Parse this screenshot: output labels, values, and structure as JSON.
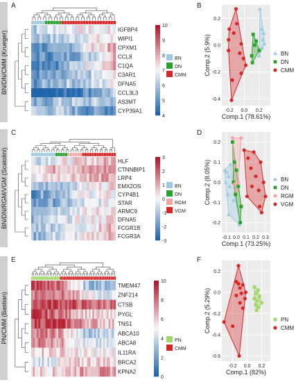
{
  "rows": [
    {
      "band_label": "BN/DN/CMM (Krueger)",
      "left_letter": "A",
      "right_letter": "B",
      "heatmap": {
        "genes": [
          "IGFBP4",
          "WIPI1",
          "CPXM1",
          "CCL8",
          "C1QA",
          "C3AR1",
          "DFNA5",
          "CCL3L3",
          "AS3MT",
          "CYP39A1"
        ],
        "colorbar_ticks": [
          "10",
          "9",
          "8",
          "7",
          "6",
          "5",
          "4"
        ],
        "legend": [
          {
            "label": "BN",
            "color": "#9ecae1"
          },
          {
            "label": "DN",
            "color": "#2ca02c"
          },
          {
            "label": "CMM",
            "color": "#d62728"
          }
        ]
      },
      "pca": {
        "xlabel": "Comp.1 (78.61%)",
        "ylabel": "Comp.2 (5.9%)",
        "xticks": [
          "-0.2",
          "0.0",
          "0.2"
        ],
        "yticks": [
          "0.2",
          "0.0",
          "-0.2",
          "-0.4"
        ],
        "legend": [
          {
            "label": "BN",
            "color": "#9ecae1",
            "shape": "triangle"
          },
          {
            "label": "DN",
            "color": "#2ca02c",
            "shape": "square"
          },
          {
            "label": "CMM",
            "color": "#d62728",
            "shape": "circle"
          }
        ]
      }
    },
    {
      "band_label": "BN/DN/RGM/VGM (Scatolini)",
      "left_letter": "C",
      "right_letter": "D",
      "heatmap": {
        "genes": [
          "HLF",
          "CTNNBIP1",
          "LRP4",
          "EMX2OS",
          "CYP4B1",
          "STAR",
          "ARMC9",
          "DFNA5",
          "FCGR1B",
          "FCGR3A"
        ],
        "colorbar_ticks": [
          "3",
          "2",
          "1",
          "0",
          "-1",
          "-2",
          "-3"
        ],
        "legend": [
          {
            "label": "BN",
            "color": "#9ecae1"
          },
          {
            "label": "DN",
            "color": "#2ca02c"
          },
          {
            "label": "RGM",
            "color": "#f4a6a6"
          },
          {
            "label": "VGM",
            "color": "#d62728"
          }
        ]
      },
      "pca": {
        "xlabel": "Comp.1 (73.25%)",
        "ylabel": "Comp.2 (8.05%)",
        "xticks": [
          "-0.1",
          "0.0",
          "0.1",
          "0.2",
          "0.3"
        ],
        "yticks": [
          "0.2",
          "0.1",
          "0.0",
          "-0.1",
          "-0.2"
        ],
        "legend": [
          {
            "label": "BN",
            "color": "#9ecae1",
            "shape": "triangle"
          },
          {
            "label": "DN",
            "color": "#2ca02c",
            "shape": "square"
          },
          {
            "label": "RGM",
            "color": "#f4a6a6",
            "shape": "diamond"
          },
          {
            "label": "VGM",
            "color": "#d62728",
            "shape": "circle"
          }
        ]
      }
    },
    {
      "band_label": "PN/CMM (Bastian)",
      "left_letter": "E",
      "right_letter": "F",
      "heatmap": {
        "genes": [
          "TMEM47",
          "ZNF214",
          "CTSB",
          "PYGL",
          "TNS1",
          "ABCA10",
          "ABCA8",
          "IL11RA",
          "BRCA2",
          "KPNA2"
        ],
        "colorbar_ticks": [
          "10",
          "8",
          "6",
          "4",
          "2",
          "0"
        ],
        "legend": [
          {
            "label": "PN",
            "color": "#a1d76a"
          },
          {
            "label": "CMM",
            "color": "#d62728"
          }
        ]
      },
      "pca": {
        "xlabel": "Comp.1 (82%)",
        "ylabel": "Comp.2 (5.29%)",
        "xticks": [
          "-0.2",
          "0.0",
          "0.2"
        ],
        "yticks": [
          "0.2",
          "0.0",
          "-0.2",
          "-0.4",
          "-0.6"
        ],
        "legend": [
          {
            "label": "PN",
            "color": "#a1d76a",
            "shape": "square"
          },
          {
            "label": "CMM",
            "color": "#d62728",
            "shape": "circle"
          }
        ]
      }
    }
  ],
  "chart_data": [
    {
      "type": "heatmap",
      "rows": [
        "IGFBP4",
        "WIPI1",
        "CPXM1",
        "CCL8",
        "C1QA",
        "C3AR1",
        "DFNA5",
        "CCL3L3",
        "AS3MT",
        "CYP39A1"
      ],
      "column_groups": [
        {
          "label": "BN",
          "count": 5
        },
        {
          "label": "DN",
          "count": 6
        },
        {
          "label": "CMM",
          "count": 20
        }
      ],
      "color_range": [
        4,
        10
      ],
      "profile": [
        [
          6,
          7,
          7,
          7
        ],
        [
          6,
          6,
          7,
          7
        ],
        [
          5,
          5,
          7,
          8
        ],
        [
          5,
          5,
          6,
          8
        ],
        [
          5,
          5,
          7,
          8
        ],
        [
          5,
          5,
          6,
          7
        ],
        [
          5,
          6,
          6,
          7
        ],
        [
          4,
          4,
          5,
          6
        ],
        [
          5,
          6,
          6,
          6
        ],
        [
          6,
          6,
          5,
          5
        ]
      ]
    },
    {
      "type": "scatter",
      "xlim": [
        -0.3,
        0.35
      ],
      "ylim": [
        -0.45,
        0.3
      ],
      "series": [
        {
          "name": "BN",
          "points": [
            [
              0.21,
              0.27
            ],
            [
              0.23,
              0.12
            ],
            [
              0.26,
              0.09
            ],
            [
              0.25,
              0.04
            ],
            [
              0.27,
              0.01
            ],
            [
              0.2,
              -0.08
            ],
            [
              0.24,
              -0.02
            ]
          ]
        },
        {
          "name": "DN",
          "points": [
            [
              0.12,
              0.08
            ],
            [
              0.16,
              0.03
            ],
            [
              0.14,
              0.0
            ],
            [
              0.2,
              -0.04
            ],
            [
              0.11,
              -0.13
            ],
            [
              0.1,
              -0.08
            ]
          ]
        },
        {
          "name": "CMM",
          "points": [
            [
              -0.11,
              0.27
            ],
            [
              -0.1,
              0.16
            ],
            [
              -0.2,
              0.12
            ],
            [
              -0.14,
              0.09
            ],
            [
              -0.21,
              0.04
            ],
            [
              -0.04,
              0.01
            ],
            [
              -0.06,
              -0.06
            ],
            [
              -0.01,
              -0.1
            ],
            [
              0.02,
              -0.15
            ],
            [
              -0.04,
              -0.21
            ],
            [
              -0.21,
              -0.04
            ],
            [
              -0.16,
              -0.26
            ],
            [
              -0.17,
              -0.41
            ]
          ]
        }
      ]
    },
    {
      "type": "heatmap",
      "rows": [
        "HLF",
        "CTNNBIP1",
        "LRP4",
        "EMX2OS",
        "CYP4B1",
        "STAR",
        "ARMC9",
        "DFNA5",
        "FCGR1B",
        "FCGR3A"
      ],
      "column_groups": [
        {
          "label": "BN",
          "count": 10
        },
        {
          "label": "DN",
          "count": 5
        },
        {
          "label": "RGM",
          "count": 6
        },
        {
          "label": "VGM",
          "count": 14
        }
      ],
      "color_range": [
        -3,
        3
      ],
      "profile": [
        [
          -0.5,
          0,
          0.5,
          1
        ],
        [
          0.5,
          1,
          1,
          1.5
        ],
        [
          0,
          0.5,
          1,
          1
        ],
        [
          -1.5,
          -1,
          0,
          0.5
        ],
        [
          -2,
          -1,
          0,
          0
        ],
        [
          -2,
          -1.5,
          -0.5,
          0
        ],
        [
          -1,
          -0.5,
          0,
          0.5
        ],
        [
          -1.5,
          -0.5,
          0,
          0.5
        ],
        [
          -1,
          -0.5,
          0,
          1
        ],
        [
          -1.5,
          -0.5,
          0,
          1
        ]
      ]
    },
    {
      "type": "scatter",
      "xlim": [
        -0.15,
        0.35
      ],
      "ylim": [
        -0.25,
        0.25
      ],
      "series": [
        {
          "name": "BN",
          "points": [
            [
              -0.12,
              0.06
            ],
            [
              -0.1,
              0.05
            ],
            [
              -0.08,
              0.03
            ],
            [
              -0.11,
              0.0
            ],
            [
              -0.07,
              -0.02
            ],
            [
              -0.09,
              -0.06
            ],
            [
              -0.03,
              -0.09
            ],
            [
              -0.06,
              0.09
            ],
            [
              -0.08,
              -0.16
            ],
            [
              0.03,
              -0.21
            ]
          ]
        },
        {
          "name": "DN",
          "points": [
            [
              -0.04,
              0.2
            ],
            [
              -0.02,
              0.1
            ],
            [
              0.0,
              0.06
            ],
            [
              -0.03,
              0.0
            ],
            [
              0.02,
              -0.02
            ],
            [
              -0.01,
              -0.06
            ],
            [
              0.05,
              -0.12
            ],
            [
              0.04,
              -0.2
            ]
          ]
        },
        {
          "name": "RGM",
          "points": [
            [
              -0.04,
              0.22
            ],
            [
              0.05,
              0.22
            ],
            [
              0.02,
              0.0
            ],
            [
              -0.02,
              -0.01
            ],
            [
              0.0,
              -0.04
            ]
          ]
        },
        {
          "name": "VGM",
          "points": [
            [
              0.08,
              0.16
            ],
            [
              0.18,
              0.15
            ],
            [
              0.12,
              0.12
            ],
            [
              0.25,
              0.1
            ],
            [
              0.15,
              0.07
            ],
            [
              0.2,
              0.03
            ],
            [
              0.28,
              0.0
            ],
            [
              0.16,
              -0.02
            ],
            [
              0.23,
              -0.04
            ],
            [
              0.11,
              -0.07
            ],
            [
              0.3,
              -0.07
            ],
            [
              0.24,
              -0.12
            ],
            [
              0.26,
              -0.15
            ]
          ]
        }
      ]
    },
    {
      "type": "heatmap",
      "rows": [
        "TMEM47",
        "ZNF214",
        "CTSB",
        "PYGL",
        "TNS1",
        "ABCA10",
        "ABCA8",
        "IL11RA",
        "BRCA2",
        "KPNA2"
      ],
      "column_groups": [
        {
          "label": "PN",
          "count": 16
        },
        {
          "label": "CMM",
          "count": 31
        }
      ],
      "color_range": [
        0,
        10
      ],
      "profile": [
        [
          9,
          8,
          3,
          3
        ],
        [
          8,
          8,
          5,
          4
        ],
        [
          9,
          9,
          8,
          8
        ],
        [
          9,
          8,
          6,
          5
        ],
        [
          9,
          9,
          7,
          6
        ],
        [
          8,
          7,
          3,
          4
        ],
        [
          8,
          7,
          4,
          4
        ],
        [
          6,
          6,
          5,
          5
        ],
        [
          4,
          5,
          6,
          6
        ],
        [
          6,
          6,
          7,
          7
        ]
      ]
    },
    {
      "type": "scatter",
      "xlim": [
        -0.35,
        0.32
      ],
      "ylim": [
        -0.65,
        0.3
      ],
      "series": [
        {
          "name": "PN",
          "points": [
            [
              0.1,
              0.05
            ],
            [
              0.15,
              0.02
            ],
            [
              0.12,
              -0.01
            ],
            [
              0.17,
              -0.04
            ],
            [
              0.1,
              -0.06
            ],
            [
              0.14,
              -0.08
            ],
            [
              0.2,
              -0.1
            ],
            [
              0.12,
              -0.12
            ],
            [
              0.16,
              -0.14
            ],
            [
              0.13,
              -0.17
            ]
          ]
        },
        {
          "name": "CMM",
          "points": [
            [
              -0.12,
              0.25
            ],
            [
              -0.15,
              0.1
            ],
            [
              -0.12,
              0.08
            ],
            [
              -0.06,
              0.07
            ],
            [
              -0.1,
              0.04
            ],
            [
              -0.02,
              0.0
            ],
            [
              -0.08,
              -0.01
            ],
            [
              -0.15,
              -0.03
            ],
            [
              -0.03,
              -0.06
            ],
            [
              -0.1,
              -0.1
            ],
            [
              -0.06,
              -0.15
            ],
            [
              -0.32,
              -0.28
            ],
            [
              -0.2,
              -0.32
            ],
            [
              -0.11,
              -0.6
            ]
          ]
        }
      ]
    }
  ]
}
